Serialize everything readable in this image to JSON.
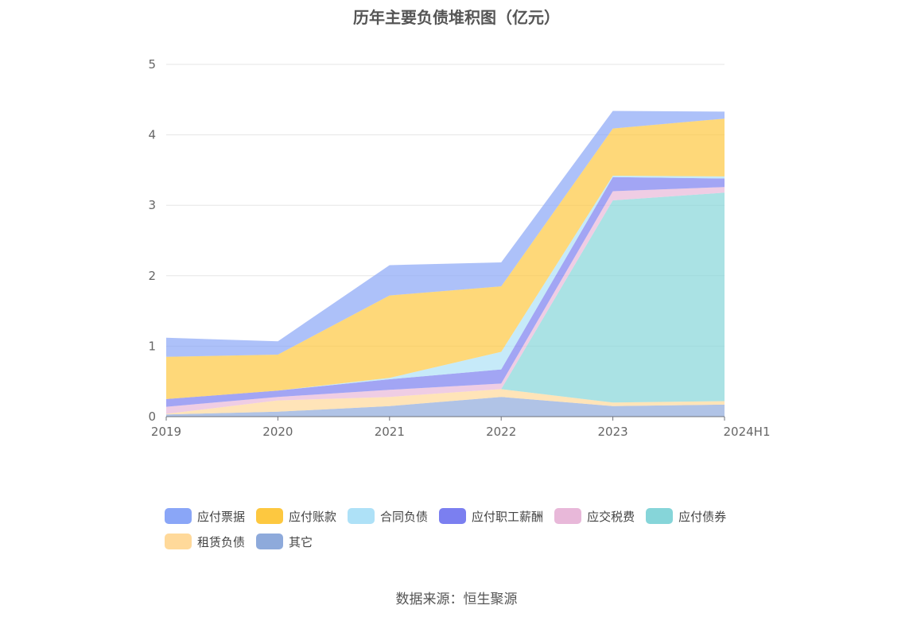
{
  "title": "历年主要负债堆积图（亿元）",
  "source": "数据来源：恒生聚源",
  "chart_data": {
    "type": "area",
    "stacked": true,
    "title": "历年主要负债堆积图（亿元）",
    "categories": [
      "2019",
      "2020",
      "2021",
      "2022",
      "2023",
      "2024H1"
    ],
    "ylim": [
      0,
      5
    ],
    "y_ticks": [
      "0",
      "1",
      "2",
      "3",
      "4",
      "5"
    ],
    "grid": true,
    "legend_position": "bottom",
    "series": [
      {
        "name": "其它",
        "color": "#8eaadb",
        "values": [
          0.03,
          0.07,
          0.15,
          0.28,
          0.15,
          0.17
        ]
      },
      {
        "name": "租赁负债",
        "color": "#ffd99a",
        "values": [
          0.01,
          0.16,
          0.13,
          0.11,
          0.05,
          0.05
        ]
      },
      {
        "name": "应付债券",
        "color": "#86d5d9",
        "values": [
          0.0,
          0.0,
          0.0,
          0.0,
          2.87,
          2.96
        ]
      },
      {
        "name": "应交税费",
        "color": "#e8b8d9",
        "values": [
          0.1,
          0.05,
          0.1,
          0.08,
          0.13,
          0.08
        ]
      },
      {
        "name": "应付职工薪酬",
        "color": "#7b7ff0",
        "values": [
          0.11,
          0.09,
          0.15,
          0.2,
          0.2,
          0.12
        ]
      },
      {
        "name": "合同负债",
        "color": "#aee1f7",
        "values": [
          0.0,
          0.0,
          0.02,
          0.25,
          0.02,
          0.03
        ]
      },
      {
        "name": "应付账款",
        "color": "#fdc840",
        "values": [
          0.6,
          0.51,
          1.17,
          0.93,
          0.67,
          0.82
        ]
      },
      {
        "name": "应付票据",
        "color": "#8aa6f7",
        "values": [
          0.27,
          0.19,
          0.43,
          0.34,
          0.25,
          0.1
        ]
      }
    ]
  },
  "legend": [
    {
      "label": "应付票据",
      "color": "#8aa6f7"
    },
    {
      "label": "应付账款",
      "color": "#fdc840"
    },
    {
      "label": "合同负债",
      "color": "#aee1f7"
    },
    {
      "label": "应付职工薪酬",
      "color": "#7b7ff0"
    },
    {
      "label": "应交税费",
      "color": "#e8b8d9"
    },
    {
      "label": "应付债券",
      "color": "#86d5d9"
    },
    {
      "label": "租赁负债",
      "color": "#ffd99a"
    },
    {
      "label": "其它",
      "color": "#8eaadb"
    }
  ]
}
